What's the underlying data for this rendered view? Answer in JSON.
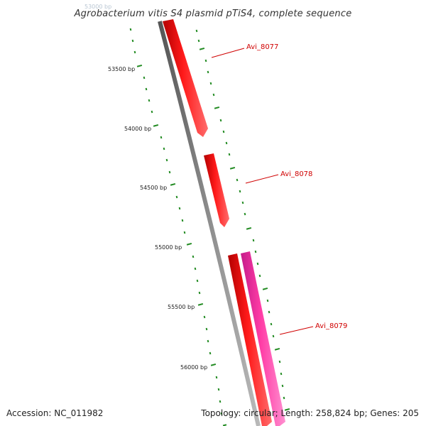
{
  "header": {
    "title": "Agrobacterium vitis S4 plasmid pTiS4, complete sequence",
    "clipped_top_label": "53000 bp"
  },
  "footer": {
    "accession": "Accession: NC_011982",
    "summary": "Topology: circular; Length: 258,824 bp; Genes: 205"
  },
  "map": {
    "topology": "circular",
    "length_bp": 258824,
    "gene_count": 205,
    "position_labels": [
      "53500 bp",
      "54000 bp",
      "54500 bp",
      "55000 bp",
      "55500 bp",
      "56000 bp"
    ],
    "features": [
      {
        "name": "Avi_8077",
        "strand": "forward",
        "color": "#ff0000"
      },
      {
        "name": "Avi_8078",
        "strand": "forward",
        "color": "#ff0000"
      },
      {
        "name": "Avi_8079",
        "strand": "forward",
        "color": "#ff0000"
      },
      {
        "name": "",
        "strand": "reverse",
        "color": "#ff1493"
      }
    ]
  },
  "colors": {
    "backbone": "#808080",
    "tick": "#228b22",
    "feature_forward": "#ff0000",
    "feature_reverse": "#ff1493",
    "feature_label": "#d00000"
  }
}
